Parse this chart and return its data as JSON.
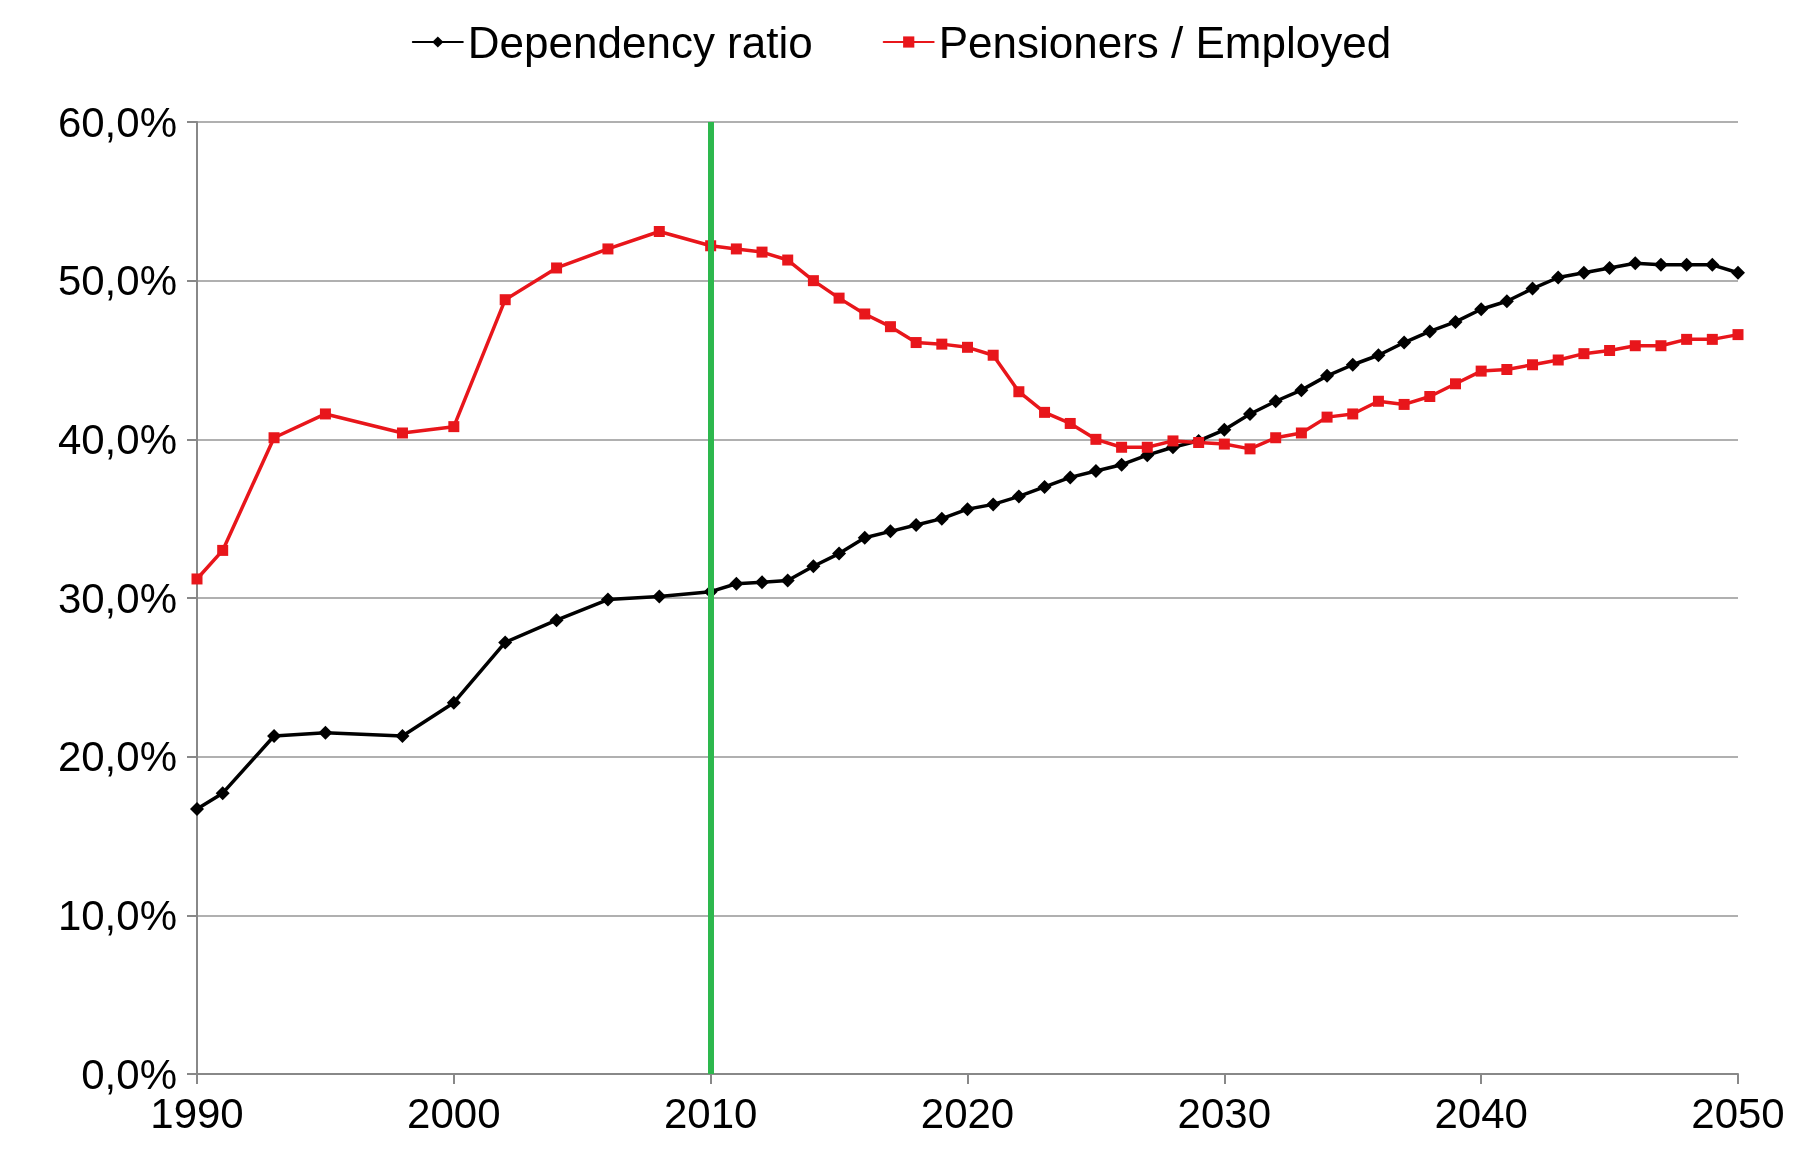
{
  "chart_data": {
    "type": "line",
    "legend": "top",
    "grid": "y",
    "line_style": "solid",
    "x": [
      1990,
      1991,
      1993,
      1995,
      1998,
      2000,
      2002,
      2004,
      2006,
      2008,
      2010,
      2011,
      2012,
      2013,
      2014,
      2015,
      2016,
      2017,
      2018,
      2019,
      2020,
      2021,
      2022,
      2023,
      2024,
      2025,
      2026,
      2027,
      2028,
      2029,
      2030,
      2031,
      2032,
      2033,
      2034,
      2035,
      2036,
      2037,
      2038,
      2039,
      2040,
      2041,
      2042,
      2043,
      2044,
      2045,
      2046,
      2047,
      2048,
      2049,
      2050
    ],
    "series": [
      {
        "name": "Dependency ratio",
        "color": "#000000",
        "marker": "diamond",
        "values": [
          16.7,
          17.7,
          21.3,
          21.5,
          21.3,
          23.4,
          27.2,
          28.6,
          29.9,
          30.1,
          30.4,
          30.9,
          31.0,
          31.1,
          32.0,
          32.8,
          33.8,
          34.2,
          34.6,
          35.0,
          35.6,
          35.9,
          36.4,
          37.0,
          37.6,
          38.0,
          38.4,
          39.0,
          39.5,
          39.9,
          40.6,
          41.6,
          42.4,
          43.1,
          44.0,
          44.7,
          45.3,
          46.1,
          46.8,
          47.4,
          48.2,
          48.7,
          49.5,
          50.2,
          50.5,
          50.8,
          51.1,
          51.0,
          51.0,
          51.0,
          50.5
        ]
      },
      {
        "name": "Pensioners / Employed",
        "color": "#e8161b",
        "marker": "square",
        "values": [
          31.2,
          33.0,
          40.1,
          41.6,
          40.4,
          40.8,
          48.8,
          50.8,
          52.0,
          53.1,
          52.2,
          52.0,
          51.8,
          51.3,
          50.0,
          48.9,
          47.9,
          47.1,
          46.1,
          46.0,
          45.8,
          45.3,
          43.0,
          41.7,
          41.0,
          40.0,
          39.5,
          39.5,
          39.9,
          39.8,
          39.7,
          39.4,
          40.1,
          40.4,
          41.4,
          41.6,
          42.4,
          42.2,
          42.7,
          43.5,
          44.3,
          44.4,
          44.7,
          45.0,
          45.4,
          45.6,
          45.9,
          45.9,
          46.3,
          46.3,
          46.6
        ]
      }
    ],
    "xlim": [
      1990,
      2050
    ],
    "xticks": [
      1990,
      2000,
      2010,
      2020,
      2030,
      2040,
      2050
    ],
    "ylim": [
      0,
      60
    ],
    "yticks": [
      {
        "value": 0,
        "label": "0,0%"
      },
      {
        "value": 10,
        "label": "10,0%"
      },
      {
        "value": 20,
        "label": "20,0%"
      },
      {
        "value": 30,
        "label": "30,0%"
      },
      {
        "value": 40,
        "label": "40,0%"
      },
      {
        "value": 50,
        "label": "50,0%"
      },
      {
        "value": 60,
        "label": "60,0%"
      }
    ],
    "ref_lines": [
      {
        "axis": "x",
        "value": 2010,
        "color": "#2db84d",
        "line_style": "solid"
      }
    ]
  }
}
